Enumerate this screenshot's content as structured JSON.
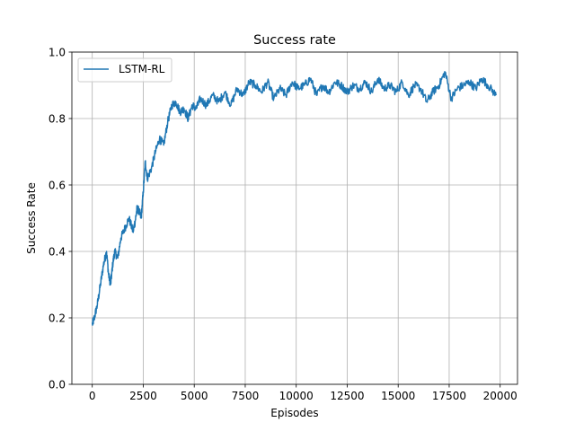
{
  "chart_data": {
    "type": "line",
    "title": "Success rate",
    "xlabel": "Episodes",
    "ylabel": "Success Rate",
    "xlim": [
      -1000,
      20850
    ],
    "ylim": [
      0.0,
      1.0
    ],
    "xticks": [
      0,
      2500,
      5000,
      7500,
      10000,
      12500,
      15000,
      17500,
      20000
    ],
    "yticks": [
      0.0,
      0.2,
      0.4,
      0.6,
      0.8,
      1.0
    ],
    "xtick_labels": [
      "0",
      "2500",
      "5000",
      "7500",
      "10000",
      "12500",
      "15000",
      "17500",
      "20000"
    ],
    "ytick_labels": [
      "0.0",
      "0.2",
      "0.4",
      "0.6",
      "0.8",
      "1.0"
    ],
    "grid": true,
    "legend": {
      "position": "upper-left",
      "entries": [
        "LSTM-RL"
      ]
    },
    "series": [
      {
        "name": "LSTM-RL",
        "color": "#1f77b4",
        "x": [
          0,
          100,
          250,
          400,
          550,
          700,
          800,
          900,
          1000,
          1100,
          1250,
          1400,
          1600,
          1800,
          2000,
          2100,
          2200,
          2300,
          2400,
          2500,
          2600,
          2700,
          2900,
          3100,
          3300,
          3500,
          3700,
          3900,
          4100,
          4300,
          4500,
          4700,
          4900,
          5100,
          5300,
          5600,
          5900,
          6200,
          6500,
          6800,
          7100,
          7400,
          7700,
          8000,
          8300,
          8600,
          8900,
          9200,
          9500,
          9800,
          10100,
          10400,
          10700,
          11000,
          11300,
          11600,
          11900,
          12200,
          12500,
          12800,
          13100,
          13400,
          13700,
          14000,
          14300,
          14600,
          14900,
          15200,
          15500,
          15800,
          16100,
          16400,
          16700,
          17000,
          17300,
          17600,
          17900,
          18200,
          18500,
          18800,
          19100,
          19400,
          19800
        ],
        "y": [
          0.18,
          0.2,
          0.24,
          0.3,
          0.36,
          0.4,
          0.33,
          0.3,
          0.36,
          0.4,
          0.38,
          0.44,
          0.47,
          0.5,
          0.46,
          0.49,
          0.53,
          0.52,
          0.5,
          0.58,
          0.67,
          0.62,
          0.65,
          0.7,
          0.74,
          0.72,
          0.79,
          0.84,
          0.85,
          0.82,
          0.83,
          0.8,
          0.84,
          0.83,
          0.86,
          0.84,
          0.87,
          0.85,
          0.88,
          0.84,
          0.89,
          0.87,
          0.91,
          0.9,
          0.88,
          0.91,
          0.86,
          0.89,
          0.87,
          0.91,
          0.89,
          0.9,
          0.92,
          0.87,
          0.9,
          0.88,
          0.91,
          0.9,
          0.88,
          0.9,
          0.89,
          0.91,
          0.88,
          0.92,
          0.89,
          0.9,
          0.88,
          0.91,
          0.87,
          0.9,
          0.89,
          0.85,
          0.88,
          0.9,
          0.94,
          0.86,
          0.89,
          0.9,
          0.91,
          0.89,
          0.92,
          0.9,
          0.87
        ]
      }
    ]
  }
}
